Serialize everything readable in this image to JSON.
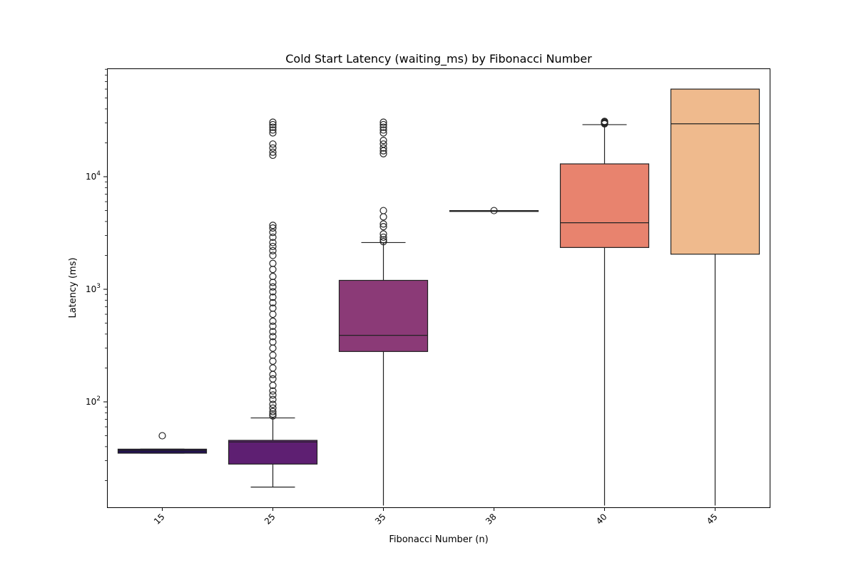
{
  "chart_data": {
    "type": "box",
    "title": "Cold Start Latency (waiting_ms) by Fibonacci Number",
    "xlabel": "Fibonacci Number (n)",
    "ylabel": "Latency (ms)",
    "yscale": "log",
    "ylim": [
      12,
      90000
    ],
    "y_tick_labels": [
      {
        "value": 100,
        "base": "10",
        "exp": "2"
      },
      {
        "value": 1000,
        "base": "10",
        "exp": "3"
      },
      {
        "value": 10000,
        "base": "10",
        "exp": "4"
      }
    ],
    "grid": false,
    "legend": "none",
    "categories": [
      "15",
      "25",
      "35",
      "38",
      "40",
      "45"
    ],
    "boxes": [
      {
        "category": "15",
        "whisker_low": 35,
        "q1": 35,
        "median": 37,
        "q3": 38,
        "whisker_high": 38,
        "outliers": [
          50
        ],
        "color": "#221150"
      },
      {
        "category": "25",
        "whisker_low": 17.5,
        "q1": 28,
        "median": 44,
        "q3": 45.5,
        "whisker_high": 72,
        "outliers": [
          75,
          78,
          82,
          88,
          95,
          105,
          115,
          125,
          140,
          160,
          175,
          200,
          230,
          260,
          300,
          340,
          380,
          420,
          470,
          520,
          600,
          680,
          760,
          850,
          950,
          1050,
          1150,
          1300,
          1500,
          1700,
          2000,
          2200,
          2400,
          2600,
          2900,
          3200,
          3500,
          3700,
          15500,
          16500,
          18000,
          19500,
          24500,
          26000,
          27500,
          29000,
          30500
        ],
        "color": "#5e1f72"
      },
      {
        "category": "35",
        "whisker_low": 12,
        "q1": 280,
        "median": 390,
        "q3": 1200,
        "whisker_high": 2600,
        "outliers": [
          2650,
          2750,
          2900,
          3100,
          3600,
          3800,
          4400,
          5000,
          16000,
          17000,
          18000,
          19500,
          21000,
          24500,
          26000,
          27500,
          29000,
          30500
        ],
        "color": "#8b3a77"
      },
      {
        "category": "38",
        "whisker_low": 5000,
        "q1": 5000,
        "median": 5000,
        "q3": 5000,
        "whisker_high": 5000,
        "outliers": [
          5000
        ],
        "color": "#e8735e"
      },
      {
        "category": "40",
        "whisker_low": 12,
        "q1": 2350,
        "median": 3900,
        "q3": 13000,
        "whisker_high": 29000,
        "outliers": [
          29500,
          30000,
          30500,
          31000
        ],
        "color": "#e8836e"
      },
      {
        "category": "45",
        "whisker_low": 12,
        "q1": 2050,
        "median": 29500,
        "q3": 60000,
        "whisker_high": 60000,
        "outliers": [],
        "color": "#efba8d"
      }
    ]
  }
}
